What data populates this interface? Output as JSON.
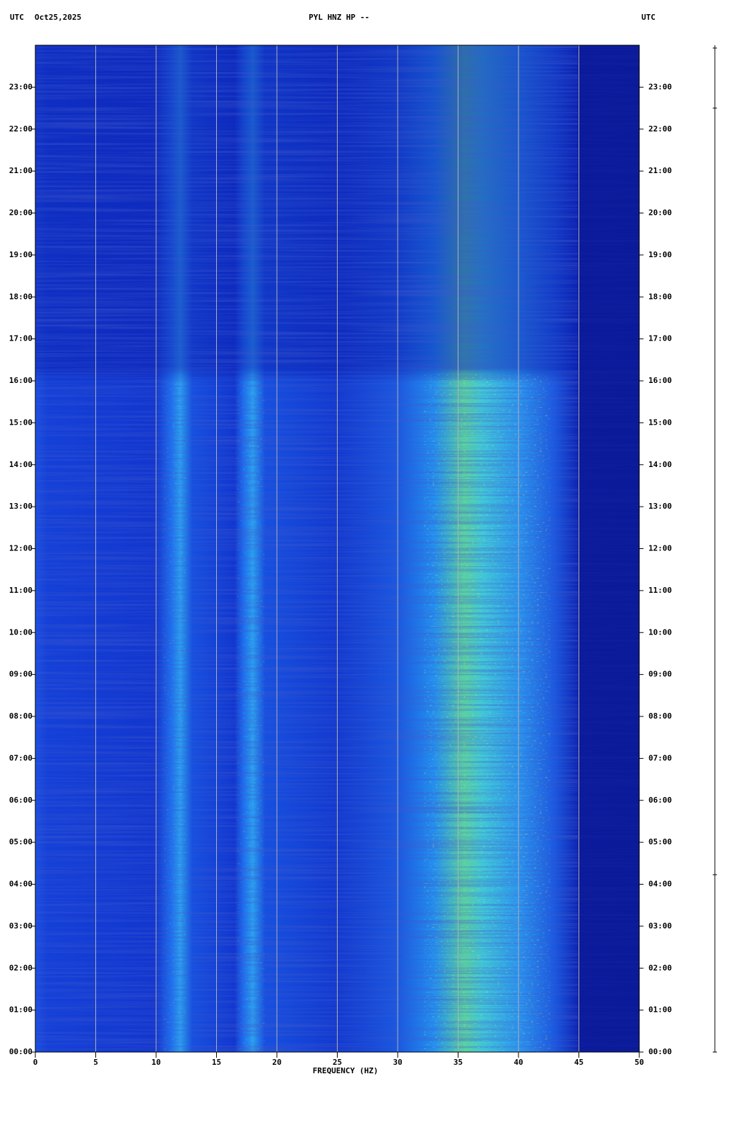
{
  "chart_data": {
    "type": "spectrogram",
    "title": "PYL HNZ HP --",
    "time_zone": "UTC",
    "date": "Oct25,2025",
    "xlabel": "FREQUENCY (HZ)",
    "xlim": [
      0,
      50
    ],
    "xticks": [
      0,
      5,
      10,
      15,
      20,
      25,
      30,
      35,
      40,
      45,
      50
    ],
    "ylim": [
      0,
      24
    ],
    "yticks": [
      {
        "value": 0,
        "label": "00:00"
      },
      {
        "value": 1,
        "label": "01:00"
      },
      {
        "value": 2,
        "label": "02:00"
      },
      {
        "value": 3,
        "label": "03:00"
      },
      {
        "value": 4,
        "label": "04:00"
      },
      {
        "value": 5,
        "label": "05:00"
      },
      {
        "value": 6,
        "label": "06:00"
      },
      {
        "value": 7,
        "label": "07:00"
      },
      {
        "value": 8,
        "label": "08:00"
      },
      {
        "value": 9,
        "label": "09:00"
      },
      {
        "value": 10,
        "label": "10:00"
      },
      {
        "value": 11,
        "label": "11:00"
      },
      {
        "value": 12,
        "label": "12:00"
      },
      {
        "value": 13,
        "label": "13:00"
      },
      {
        "value": 14,
        "label": "14:00"
      },
      {
        "value": 15,
        "label": "15:00"
      },
      {
        "value": 16,
        "label": "16:00"
      },
      {
        "value": 17,
        "label": "17:00"
      },
      {
        "value": 18,
        "label": "18:00"
      },
      {
        "value": 19,
        "label": "19:00"
      },
      {
        "value": 20,
        "label": "20:00"
      },
      {
        "value": 21,
        "label": "21:00"
      },
      {
        "value": 22,
        "label": "22:00"
      },
      {
        "value": 23,
        "label": "23:00"
      }
    ],
    "grid": true
  }
}
